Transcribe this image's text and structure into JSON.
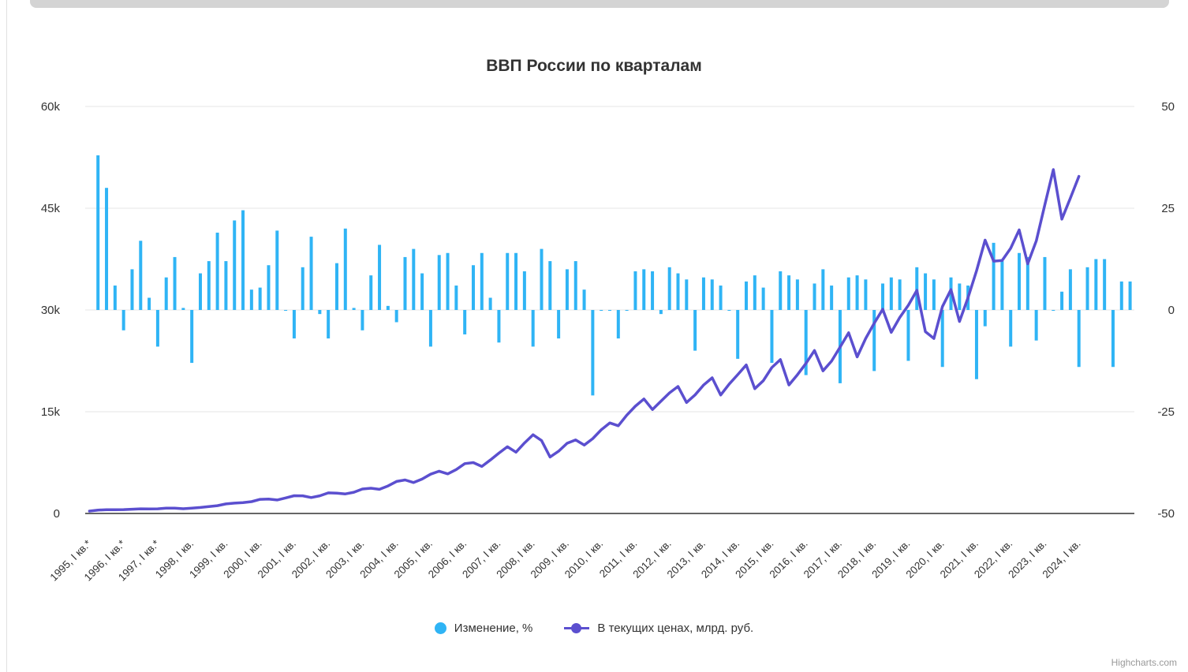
{
  "colors": {
    "bars": "#2fb4f5",
    "line": "#5b4fcf",
    "grid": "#e6e6e6",
    "axis": "#333333"
  },
  "legend": {
    "bars_label": "Изменение, %",
    "line_label": "В текущих ценах, млрд. руб."
  },
  "credits": "Highcharts.com",
  "chart_data": {
    "type": "bar+line",
    "title": "ВВП России по кварталам",
    "left_axis": {
      "ticks": [
        "0",
        "15k",
        "30k",
        "45k",
        "60k"
      ],
      "range": [
        0,
        60000
      ]
    },
    "right_axis": {
      "ticks": [
        "-50",
        "-25",
        "0",
        "25",
        "50"
      ],
      "range": [
        -50,
        50
      ]
    },
    "x_tick_labels": [
      "1995, I кв.*",
      "1996, I кв.*",
      "1997, I кв.*",
      "1998, I кв.",
      "1999, I кв.",
      "2000, I кв.",
      "2001, I кв.",
      "2002, I кв.",
      "2003, I кв.",
      "2004, I кв.",
      "2005, I кв.",
      "2006, I кв.",
      "2007, I кв.",
      "2008, I кв.",
      "2009, I кв.",
      "2010, I кв.",
      "2011, I кв.",
      "2012, I кв.",
      "2013, I кв.",
      "2014, I кв.",
      "2015, I кв.",
      "2016, I кв.",
      "2017, I кв.",
      "2018, I кв.",
      "2019, I кв.",
      "2020, I кв.",
      "2021, I кв.",
      "2022, I кв.",
      "2023, I кв.",
      "2024, I кв."
    ],
    "series": [
      {
        "name": "Изменение, %",
        "axis": "right",
        "values": [
          null,
          38,
          30,
          6,
          -5,
          10,
          17,
          3,
          -9,
          8,
          13,
          0.5,
          -13,
          9,
          12,
          19,
          12,
          22,
          24.5,
          5,
          5.5,
          11,
          19.5,
          0,
          -7,
          10.5,
          18,
          -1,
          -7,
          11.5,
          20,
          0.5,
          -5,
          8.5,
          16,
          1,
          -3,
          13,
          15,
          9,
          -9,
          13.5,
          14,
          6,
          -6,
          11,
          14,
          3,
          -8,
          14,
          14,
          9.5,
          -9,
          15,
          12,
          -7,
          10,
          12,
          5,
          -21,
          0,
          0,
          -7,
          0,
          9.5,
          10,
          9.5,
          -1,
          10.5,
          9,
          7.5,
          -10,
          8,
          7.5,
          6,
          0,
          -12,
          7,
          8.5,
          5.5,
          -13,
          9.5,
          8.5,
          7.5,
          -16,
          6.5,
          10,
          6,
          -18,
          8,
          8.5,
          7.5,
          -15,
          6.5,
          8,
          7.5,
          -12.5,
          10.5,
          9,
          7.5,
          -14,
          8,
          6.5,
          6,
          -17,
          -4,
          16.5,
          12,
          -9,
          14,
          13,
          -7.5,
          13,
          0,
          4.5,
          10,
          -14,
          10.5,
          12.5,
          12.5,
          -14,
          7,
          7
        ]
      },
      {
        "name": "В текущих ценах, млрд. руб.",
        "axis": "left",
        "values": [
          350,
          500,
          560,
          560,
          570,
          630,
          690,
          660,
          690,
          790,
          790,
          700,
          780,
          880,
          1020,
          1150,
          1410,
          1520,
          1590,
          1750,
          2080,
          2130,
          1990,
          2290,
          2620,
          2600,
          2350,
          2610,
          3030,
          3000,
          2880,
          3130,
          3600,
          3720,
          3560,
          4060,
          4720,
          4940,
          4560,
          5070,
          5790,
          6230,
          5840,
          6480,
          7350,
          7500,
          6930,
          7880,
          8900,
          9840,
          9030,
          10400,
          11600,
          10740,
          8320,
          9180,
          10350,
          10840,
          10080,
          11040,
          12340,
          13350,
          12930,
          14500,
          15810,
          16880,
          15330,
          16560,
          17780,
          18720,
          16360,
          17480,
          18930,
          20000,
          17470,
          19080,
          20460,
          21900,
          18400,
          19570,
          21510,
          22690,
          18940,
          20450,
          22130,
          24020,
          21020,
          22450,
          24530,
          26640,
          23080,
          25800,
          28050,
          30100,
          26700,
          28900,
          30700,
          32900,
          26800,
          25800,
          30500,
          33000,
          28300,
          31800,
          35800,
          40300,
          37200,
          37300,
          39100,
          41800,
          36800,
          40200,
          45500,
          50700,
          43400,
          46500,
          49700
        ]
      }
    ]
  }
}
